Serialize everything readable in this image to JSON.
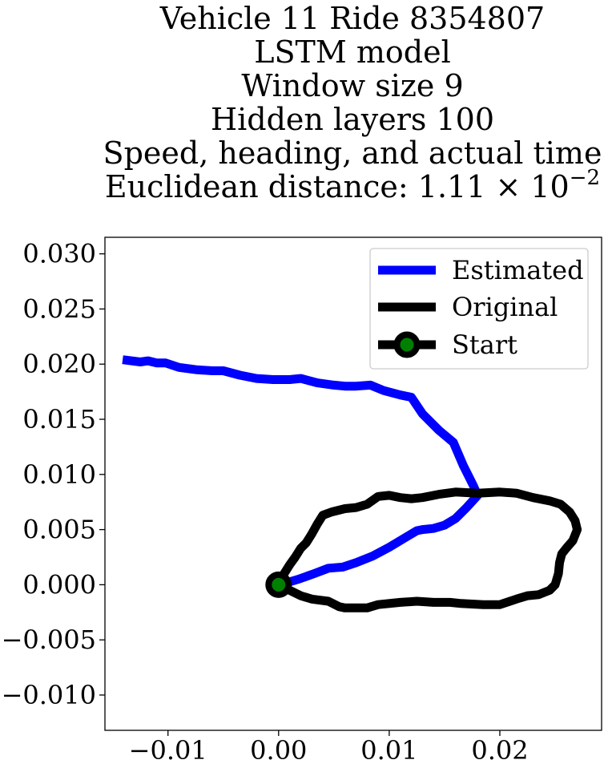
{
  "chart_data": {
    "type": "line",
    "title_lines": [
      "Vehicle 11 Ride 8354807",
      "LSTM model",
      "Window size 9",
      "Hidden layers 100",
      "Speed, heading, and actual time"
    ],
    "title_metric_prefix": "Euclidean distance: 1.11 × 10",
    "title_metric_exponent": "−2",
    "xlim": [
      -0.0157,
      0.0292
    ],
    "ylim": [
      -0.0132,
      0.0315
    ],
    "x_ticks": [
      {
        "value": -0.01,
        "label": "−0.01"
      },
      {
        "value": 0.0,
        "label": "0.00"
      },
      {
        "value": 0.01,
        "label": "0.01"
      },
      {
        "value": 0.02,
        "label": "0.02"
      }
    ],
    "y_ticks": [
      {
        "value": -0.01,
        "label": "−0.010"
      },
      {
        "value": -0.005,
        "label": "−0.005"
      },
      {
        "value": 0.0,
        "label": "0.000"
      },
      {
        "value": 0.005,
        "label": "0.005"
      },
      {
        "value": 0.01,
        "label": "0.010"
      },
      {
        "value": 0.015,
        "label": "0.015"
      },
      {
        "value": 0.02,
        "label": "0.020"
      },
      {
        "value": 0.025,
        "label": "0.025"
      },
      {
        "value": 0.03,
        "label": "0.030"
      }
    ],
    "grid": false,
    "legend_position": "top-right",
    "series": [
      {
        "name": "Estimated",
        "color": "#0000ff",
        "points": [
          [
            -0.0141,
            0.0204
          ],
          [
            -0.0125,
            0.0202
          ],
          [
            -0.0118,
            0.0203
          ],
          [
            -0.011,
            0.0201
          ],
          [
            -0.0102,
            0.0201
          ],
          [
            -0.009,
            0.0197
          ],
          [
            -0.0075,
            0.0195
          ],
          [
            -0.006,
            0.0194
          ],
          [
            -0.005,
            0.0194
          ],
          [
            -0.0035,
            0.019
          ],
          [
            -0.002,
            0.0187
          ],
          [
            -0.0005,
            0.0186
          ],
          [
            0.001,
            0.0186
          ],
          [
            0.002,
            0.0187
          ],
          [
            0.0035,
            0.0183
          ],
          [
            0.005,
            0.0181
          ],
          [
            0.006,
            0.018
          ],
          [
            0.007,
            0.018
          ],
          [
            0.0083,
            0.0181
          ],
          [
            0.0095,
            0.0176
          ],
          [
            0.011,
            0.0172
          ],
          [
            0.012,
            0.017
          ],
          [
            0.013,
            0.0155
          ],
          [
            0.0145,
            0.014
          ],
          [
            0.0158,
            0.0129
          ],
          [
            0.0167,
            0.0108
          ],
          [
            0.0176,
            0.009
          ],
          [
            0.018,
            0.0081
          ],
          [
            0.017,
            0.007
          ],
          [
            0.016,
            0.006
          ],
          [
            0.015,
            0.0054
          ],
          [
            0.014,
            0.0051
          ],
          [
            0.013,
            0.005
          ],
          [
            0.0125,
            0.0049
          ],
          [
            0.0115,
            0.0043
          ],
          [
            0.01,
            0.0034
          ],
          [
            0.0085,
            0.0026
          ],
          [
            0.007,
            0.002
          ],
          [
            0.0058,
            0.0016
          ],
          [
            0.0045,
            0.0015
          ],
          [
            0.0032,
            0.001
          ],
          [
            0.0018,
            0.0005
          ],
          [
            0.0008,
            0.0002
          ],
          [
            0.0,
            0.0
          ]
        ]
      },
      {
        "name": "Original",
        "color": "#000000",
        "points": [
          [
            0.0,
            0.0
          ],
          [
            0.0005,
            0.001
          ],
          [
            0.001,
            0.0018
          ],
          [
            0.0015,
            0.0025
          ],
          [
            0.002,
            0.0033
          ],
          [
            0.0025,
            0.0038
          ],
          [
            0.003,
            0.0046
          ],
          [
            0.0035,
            0.0055
          ],
          [
            0.004,
            0.0063
          ],
          [
            0.0048,
            0.0066
          ],
          [
            0.006,
            0.0069
          ],
          [
            0.007,
            0.007
          ],
          [
            0.008,
            0.0073
          ],
          [
            0.009,
            0.008
          ],
          [
            0.01,
            0.0081
          ],
          [
            0.011,
            0.0079
          ],
          [
            0.012,
            0.0078
          ],
          [
            0.013,
            0.0079
          ],
          [
            0.0145,
            0.0082
          ],
          [
            0.016,
            0.0084
          ],
          [
            0.018,
            0.0083
          ],
          [
            0.02,
            0.0084
          ],
          [
            0.0215,
            0.0083
          ],
          [
            0.023,
            0.0079
          ],
          [
            0.0245,
            0.0076
          ],
          [
            0.0255,
            0.0073
          ],
          [
            0.0263,
            0.0066
          ],
          [
            0.0268,
            0.0058
          ],
          [
            0.027,
            0.005
          ],
          [
            0.0266,
            0.004
          ],
          [
            0.026,
            0.0033
          ],
          [
            0.0256,
            0.0028
          ],
          [
            0.0254,
            0.002
          ],
          [
            0.0253,
            0.001
          ],
          [
            0.025,
            0.0
          ],
          [
            0.0245,
            -0.0005
          ],
          [
            0.0235,
            -0.0009
          ],
          [
            0.0225,
            -0.001
          ],
          [
            0.0215,
            -0.0013
          ],
          [
            0.02,
            -0.0018
          ],
          [
            0.0185,
            -0.0018
          ],
          [
            0.0165,
            -0.0017
          ],
          [
            0.0155,
            -0.0016
          ],
          [
            0.014,
            -0.0016
          ],
          [
            0.0125,
            -0.0015
          ],
          [
            0.011,
            -0.0016
          ],
          [
            0.009,
            -0.0018
          ],
          [
            0.008,
            -0.0021
          ],
          [
            0.006,
            -0.0021
          ],
          [
            0.0055,
            -0.002
          ],
          [
            0.0045,
            -0.0015
          ],
          [
            0.003,
            -0.0013
          ],
          [
            0.002,
            -0.001
          ],
          [
            0.001,
            -0.0005
          ],
          [
            0.0,
            0.0
          ]
        ]
      }
    ],
    "start_marker": {
      "name": "Start",
      "x": 0.0,
      "y": 0.0,
      "edge_color": "#000000",
      "face_color": "#008000"
    }
  }
}
